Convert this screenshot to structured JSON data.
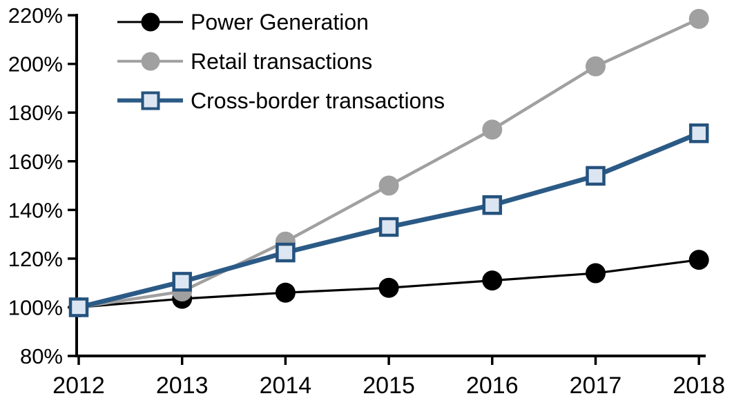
{
  "chart_data": {
    "type": "line",
    "title": "",
    "xlabel": "",
    "ylabel": "",
    "x": [
      2012,
      2013,
      2014,
      2015,
      2016,
      2017,
      2018
    ],
    "xtick_labels": [
      "2012",
      "2013",
      "2014",
      "2015",
      "2016",
      "2017",
      "2018"
    ],
    "ylim": [
      80,
      220
    ],
    "ytick_step": 20,
    "ytick_labels": [
      "80%",
      "100%",
      "120%",
      "140%",
      "160%",
      "180%",
      "200%",
      "220%"
    ],
    "grid": false,
    "legend_position": "top-left",
    "axis_color": "#000000",
    "series": [
      {
        "name": "Power Generation",
        "marker": "circle",
        "line_color": "#000000",
        "marker_fill": "#000000",
        "marker_stroke": "#000000",
        "line_width": 3.2,
        "values": [
          100,
          103.5,
          106,
          108,
          111,
          114,
          119.5
        ]
      },
      {
        "name": "Retail transactions",
        "marker": "circle",
        "line_color": "#a0a0a0",
        "marker_fill": "#a0a0a0",
        "marker_stroke": "#a0a0a0",
        "line_width": 4.5,
        "values": [
          100,
          106.5,
          127,
          150,
          173,
          199,
          218.5
        ]
      },
      {
        "name": "Cross-border transactions",
        "marker": "square",
        "line_color": "#2b5a86",
        "marker_fill": "#dce6f2",
        "marker_stroke": "#25527e",
        "line_width": 6.8,
        "values": [
          100,
          110.5,
          122.5,
          133,
          142,
          154,
          171.5
        ]
      }
    ]
  },
  "legend": {
    "items": [
      {
        "label": "Power Generation"
      },
      {
        "label": "Retail transactions"
      },
      {
        "label": "Cross-border transactions"
      }
    ]
  }
}
